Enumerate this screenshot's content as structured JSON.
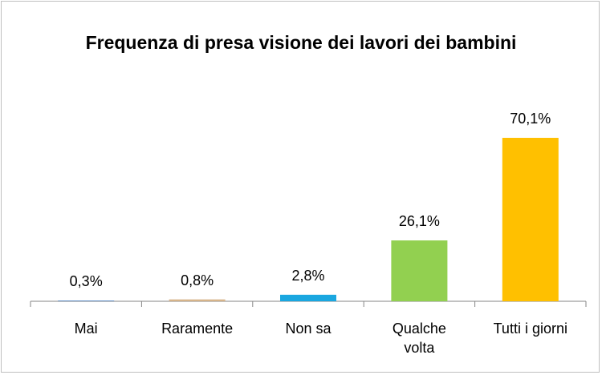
{
  "chart_data": {
    "type": "bar",
    "title": "Frequenza di presa visione dei lavori dei bambini",
    "categories": [
      "Mai",
      "Raramente",
      "Non sa",
      "Qualche volta",
      "Tutti i giorni"
    ],
    "values": [
      0.3,
      0.8,
      2.8,
      26.1,
      70.1
    ],
    "value_labels": [
      "0,3%",
      "0,8%",
      "2,8%",
      "26,1%",
      "70,1%"
    ],
    "colors": [
      "#4f81bd",
      "#d6b48a",
      "#1aa7e0",
      "#92d050",
      "#ffc000"
    ]
  }
}
